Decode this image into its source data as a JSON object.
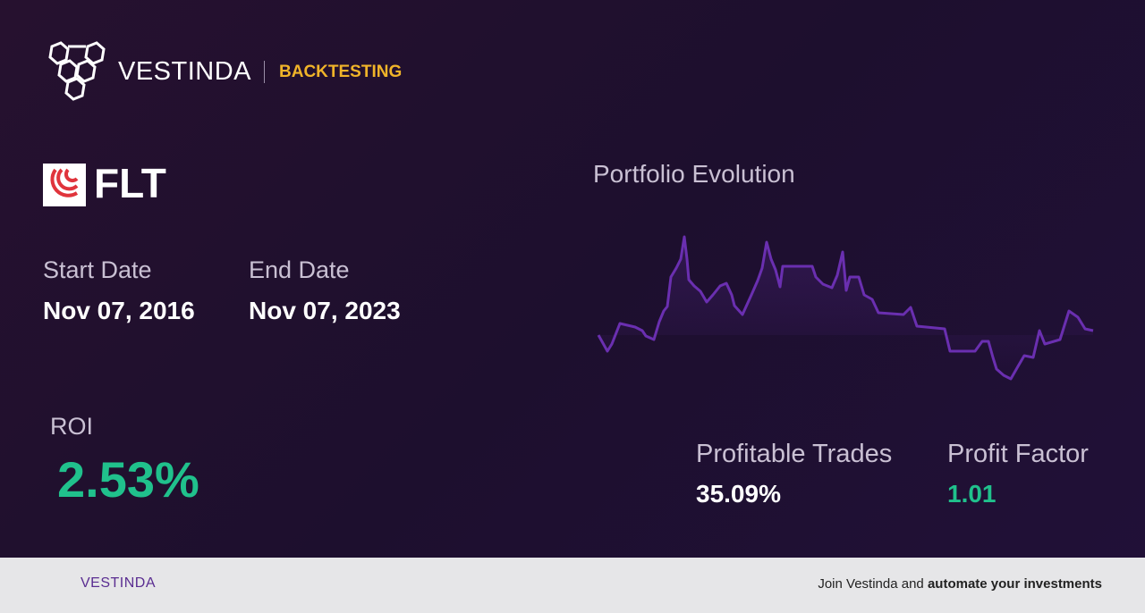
{
  "header": {
    "brand": "VESTINDA",
    "tag": "BACKTESTING"
  },
  "asset": {
    "ticker": "FLT",
    "start_date": {
      "label": "Start Date",
      "value": "Nov 07, 2016"
    },
    "end_date": {
      "label": "End Date",
      "value": "Nov 07, 2023"
    }
  },
  "metrics": {
    "roi": {
      "label": "ROI",
      "value": "2.53%"
    },
    "profitable_trades": {
      "label": "Profitable Trades",
      "value": "35.09%"
    },
    "profit_factor": {
      "label": "Profit Factor",
      "value": "1.01"
    }
  },
  "chart_data": {
    "type": "line",
    "title": "Portfolio Evolution",
    "color": "#6a2fb0",
    "x": [
      0,
      10,
      15,
      24,
      41,
      49,
      53,
      62,
      68,
      73,
      77,
      81,
      87,
      92,
      96,
      99,
      101,
      107,
      114,
      121,
      128,
      136,
      143,
      149,
      152,
      161,
      171,
      178,
      183,
      188,
      193,
      198,
      203,
      206,
      239,
      243,
      251,
      261,
      267,
      273,
      277,
      281,
      291,
      297,
      306,
      313,
      341,
      349,
      356,
      387,
      393,
      421,
      429,
      436,
      441,
      445,
      453,
      461,
      469,
      476,
      486,
      493,
      499,
      516,
      526,
      536,
      544,
      553
    ],
    "values": [
      0,
      -18,
      -10,
      13,
      9,
      5,
      -1,
      -5,
      15,
      27,
      32,
      65,
      75,
      85,
      110,
      85,
      62,
      55,
      49,
      37,
      45,
      55,
      58,
      45,
      33,
      23,
      45,
      61,
      75,
      104,
      85,
      73,
      54,
      77,
      77,
      65,
      57,
      53,
      67,
      93,
      50,
      65,
      65,
      45,
      40,
      25,
      23,
      31,
      10,
      7,
      -18,
      -18,
      -7,
      -7,
      -25,
      -38,
      -45,
      -49,
      -35,
      -23,
      -25,
      5,
      -10,
      -5,
      27,
      20,
      7,
      5
    ]
  },
  "footer": {
    "brand": "VESTINDA",
    "cta_text": "Join Vestinda and ",
    "cta_bold": "automate your investments"
  }
}
